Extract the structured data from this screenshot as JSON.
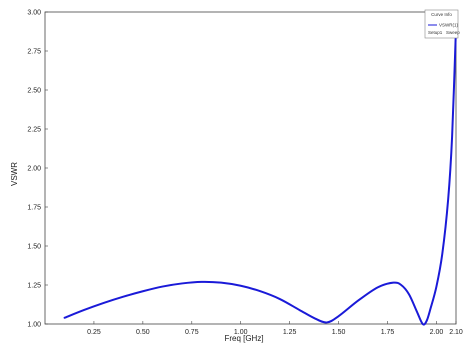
{
  "chart_data": {
    "type": "line",
    "xlabel": "Freq [GHz]",
    "ylabel": "VSWR",
    "xlim": [
      0.0,
      2.1
    ],
    "ylim": [
      1.0,
      3.0
    ],
    "x_ticks": [
      "0.25",
      "0.50",
      "0.75",
      "1.00",
      "1.25",
      "1.50",
      "1.75",
      "2.00",
      "2.10"
    ],
    "x_tick_values": [
      0.25,
      0.5,
      0.75,
      1.0,
      1.25,
      1.5,
      1.75,
      2.0,
      2.1
    ],
    "y_ticks": [
      "1.00",
      "1.25",
      "1.50",
      "1.75",
      "2.00",
      "2.25",
      "2.50",
      "2.75",
      "3.00"
    ],
    "y_tick_values": [
      1.0,
      1.25,
      1.5,
      1.75,
      2.0,
      2.25,
      2.5,
      2.75,
      3.0
    ],
    "grid": false,
    "legend_placement": "top-right",
    "legend": {
      "title": "Curve Info",
      "entry": "VSWR(1)",
      "footer_left": "Setup1",
      "footer_right": "Sweep"
    },
    "series": [
      {
        "name": "VSWR(1)",
        "color": "#1a1ad8",
        "x": [
          0.1,
          0.2,
          0.3,
          0.4,
          0.5,
          0.6,
          0.7,
          0.8,
          0.9,
          1.0,
          1.1,
          1.2,
          1.3,
          1.38,
          1.44,
          1.5,
          1.6,
          1.7,
          1.78,
          1.82,
          1.86,
          1.9,
          1.93,
          1.95,
          1.97,
          2.0,
          2.03,
          2.06,
          2.08,
          2.1
        ],
        "y": [
          1.04,
          1.09,
          1.135,
          1.175,
          1.21,
          1.24,
          1.26,
          1.27,
          1.265,
          1.245,
          1.21,
          1.16,
          1.09,
          1.035,
          1.01,
          1.05,
          1.15,
          1.235,
          1.265,
          1.25,
          1.19,
          1.08,
          1.0,
          1.02,
          1.1,
          1.24,
          1.45,
          1.8,
          2.2,
          2.9
        ]
      }
    ]
  }
}
